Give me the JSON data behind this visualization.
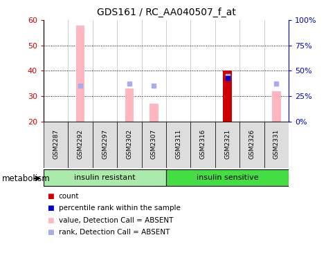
{
  "title": "GDS161 / RC_AA040507_f_at",
  "samples": [
    "GSM2287",
    "GSM2292",
    "GSM2297",
    "GSM2302",
    "GSM2307",
    "GSM2311",
    "GSM2316",
    "GSM2321",
    "GSM2326",
    "GSM2331"
  ],
  "ylim_left": [
    20,
    60
  ],
  "yticks_left": [
    20,
    30,
    40,
    50,
    60
  ],
  "ytick_labels_right": [
    "0%",
    "25%",
    "50%",
    "75%",
    "100%"
  ],
  "pink_bars": {
    "GSM2292": 58,
    "GSM2302": 33,
    "GSM2307": 27,
    "GSM2321": 40,
    "GSM2331": 32
  },
  "light_blue_squares": {
    "GSM2292": 34,
    "GSM2302": 35,
    "GSM2307": 34,
    "GSM2321": 38,
    "GSM2331": 35
  },
  "blue_squares": {
    "GSM2321": 38
  },
  "red_bars": {
    "GSM2321": 40
  },
  "groups": [
    {
      "label": "insulin resistant",
      "samples_idx": [
        0,
        1,
        2,
        3,
        4
      ],
      "color": "#AAEAAA"
    },
    {
      "label": "insulin sensitive",
      "samples_idx": [
        5,
        6,
        7,
        8,
        9
      ],
      "color": "#44DD44"
    }
  ],
  "legend_items": [
    {
      "color": "#CC0000",
      "label": "count"
    },
    {
      "color": "#0000CC",
      "label": "percentile rank within the sample"
    },
    {
      "color": "#FFB6C1",
      "label": "value, Detection Call = ABSENT"
    },
    {
      "color": "#AAAAEE",
      "label": "rank, Detection Call = ABSENT"
    }
  ],
  "axis_color_left": "#CC0000",
  "axis_color_right": "#0000BB",
  "bg_color": "#FFFFFF",
  "bar_width": 0.35
}
